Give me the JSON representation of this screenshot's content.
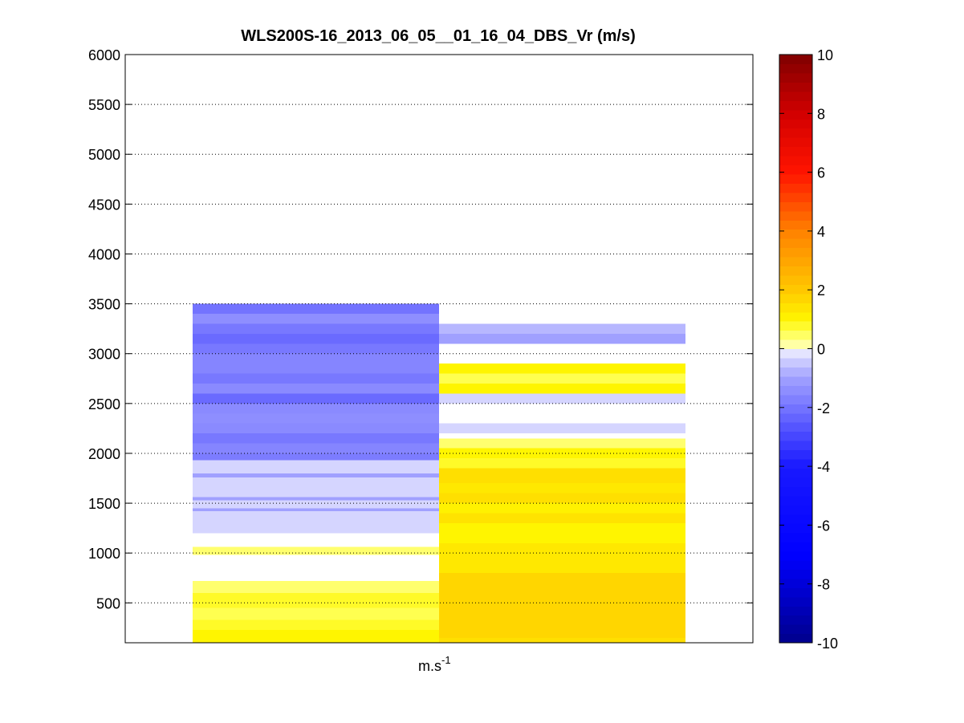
{
  "chart_data": {
    "type": "heatmap",
    "title": "WLS200S-16_2013_06_05__01_16_04_DBS_Vr (m/s)",
    "xlabel_base": "m.s",
    "xlabel_exp": "-1",
    "ylim": [
      100,
      6000
    ],
    "yticks": [
      "500",
      "1000",
      "1500",
      "2000",
      "2500",
      "3000",
      "3500",
      "4000",
      "4500",
      "5000",
      "5500",
      "6000"
    ],
    "grid": "horizontal dotted",
    "colorbar": {
      "range": [
        -10,
        10
      ],
      "ticks": [
        "-10",
        "-8",
        "-6",
        "-4",
        "-2",
        "0",
        "2",
        "4",
        "6",
        "8",
        "10"
      ]
    },
    "columns": [
      {
        "cells": [
          {
            "y0": 100,
            "y1": 230,
            "v": 1.0
          },
          {
            "y0": 230,
            "y1": 330,
            "v": 0.8
          },
          {
            "y0": 330,
            "y1": 450,
            "v": 0.6
          },
          {
            "y0": 450,
            "y1": 600,
            "v": 0.8
          },
          {
            "y0": 600,
            "y1": 720,
            "v": 0.4
          },
          {
            "y0": 980,
            "y1": 1060,
            "v": 0.4
          },
          {
            "y0": 1200,
            "y1": 1420,
            "v": -0.3
          },
          {
            "y0": 1420,
            "y1": 1450,
            "v": -1.0
          },
          {
            "y0": 1450,
            "y1": 1530,
            "v": -0.3
          },
          {
            "y0": 1530,
            "y1": 1560,
            "v": -1.0
          },
          {
            "y0": 1560,
            "y1": 1760,
            "v": -0.3
          },
          {
            "y0": 1760,
            "y1": 1800,
            "v": -1.0
          },
          {
            "y0": 1800,
            "y1": 1930,
            "v": -0.3
          },
          {
            "y0": 1930,
            "y1": 2000,
            "v": -1.8
          },
          {
            "y0": 2000,
            "y1": 2100,
            "v": -1.6
          },
          {
            "y0": 2100,
            "y1": 2200,
            "v": -1.9
          },
          {
            "y0": 2200,
            "y1": 2300,
            "v": -1.5
          },
          {
            "y0": 2300,
            "y1": 2400,
            "v": -1.4
          },
          {
            "y0": 2400,
            "y1": 2500,
            "v": -1.5
          },
          {
            "y0": 2500,
            "y1": 2600,
            "v": -2.2
          },
          {
            "y0": 2600,
            "y1": 2700,
            "v": -1.5
          },
          {
            "y0": 2700,
            "y1": 2800,
            "v": -1.9
          },
          {
            "y0": 2800,
            "y1": 3000,
            "v": -1.6
          },
          {
            "y0": 3000,
            "y1": 3100,
            "v": -1.9
          },
          {
            "y0": 3100,
            "y1": 3200,
            "v": -2.2
          },
          {
            "y0": 3200,
            "y1": 3300,
            "v": -1.9
          },
          {
            "y0": 3300,
            "y1": 3400,
            "v": -1.4
          },
          {
            "y0": 3400,
            "y1": 3500,
            "v": -2.0
          }
        ]
      },
      {
        "cells": [
          {
            "y0": 100,
            "y1": 150,
            "v": 1.5
          },
          {
            "y0": 150,
            "y1": 800,
            "v": 1.7
          },
          {
            "y0": 800,
            "y1": 1100,
            "v": 1.3
          },
          {
            "y0": 1100,
            "y1": 1300,
            "v": 1.0
          },
          {
            "y0": 1300,
            "y1": 1400,
            "v": 1.4
          },
          {
            "y0": 1400,
            "y1": 1500,
            "v": 1.1
          },
          {
            "y0": 1500,
            "y1": 1600,
            "v": 1.5
          },
          {
            "y0": 1600,
            "y1": 1700,
            "v": 1.3
          },
          {
            "y0": 1700,
            "y1": 1850,
            "v": 1.5
          },
          {
            "y0": 1850,
            "y1": 1950,
            "v": 0.8
          },
          {
            "y0": 1950,
            "y1": 2050,
            "v": 1.0
          },
          {
            "y0": 2050,
            "y1": 2150,
            "v": 0.4
          },
          {
            "y0": 2200,
            "y1": 2300,
            "v": -0.3
          },
          {
            "y0": 2500,
            "y1": 2600,
            "v": -0.3
          },
          {
            "y0": 2600,
            "y1": 2700,
            "v": 1.0
          },
          {
            "y0": 2700,
            "y1": 2800,
            "v": 0.6
          },
          {
            "y0": 2800,
            "y1": 2900,
            "v": 1.0
          },
          {
            "y0": 3100,
            "y1": 3200,
            "v": -1.0
          },
          {
            "y0": 3200,
            "y1": 3300,
            "v": -0.7
          }
        ]
      }
    ]
  }
}
